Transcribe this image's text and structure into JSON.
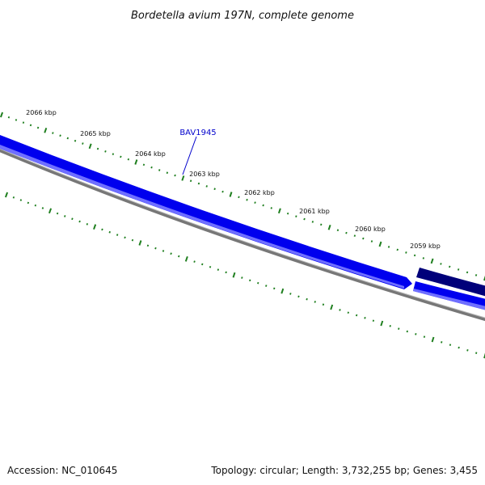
{
  "title": "Bordetella avium 197N, complete genome",
  "gene_label": "BAV1945",
  "tick_labels": [
    "2066 kbp",
    "2065 kbp",
    "2064 kbp",
    "2063 kbp",
    "2062 kbp",
    "2061 kbp",
    "2060 kbp",
    "2059 kbp"
  ],
  "footer": {
    "accession": "Accession: NC_010645",
    "summary": "Topology: circular; Length: 3,732,255 bp; Genes: 3,455"
  },
  "colors": {
    "gene_forward": "#0000ee",
    "gene_forward_light": "#6f6fff",
    "gene_reverse": "#00007a",
    "backbone": "#777777",
    "backbone_light": "#bbbbbb",
    "tick": "#1f7f1f",
    "gene_label": "#0000cc",
    "text": "#111111"
  }
}
